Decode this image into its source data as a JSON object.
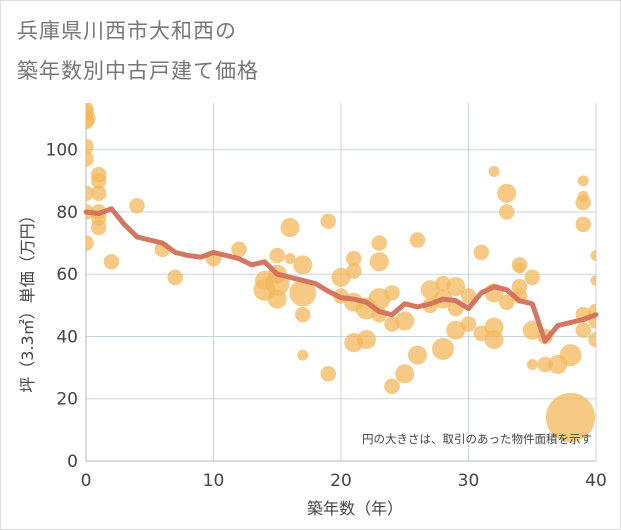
{
  "title_lines": [
    "兵庫県川西市大和西の",
    "築年数別中古戸建て価格"
  ],
  "colors": {
    "bubble": "#f3b85c",
    "line": "#d2705a",
    "grid": "#c9d6e3",
    "axis_text": "#444444",
    "title": "#777777"
  },
  "chart_data": {
    "type": "scatter",
    "title": "兵庫県川西市大和西の築年数別中古戸建て価格",
    "xlabel": "築年数（年）",
    "ylabel": "坪（3.3㎡）単価（万円）",
    "xlim": [
      0,
      40
    ],
    "ylim": [
      0,
      115
    ],
    "x_ticks": [
      0,
      10,
      20,
      30,
      40
    ],
    "y_ticks": [
      0,
      20,
      40,
      60,
      80,
      100
    ],
    "grid": true,
    "annotation": "円の大きさは、取引のあった物件面積を示す",
    "series": [
      {
        "kind": "bubble",
        "points": [
          {
            "x": 0,
            "y": 113,
            "s": 2
          },
          {
            "x": 0,
            "y": 112,
            "s": 2
          },
          {
            "x": 0,
            "y": 110,
            "s": 3
          },
          {
            "x": 0,
            "y": 109,
            "s": 2
          },
          {
            "x": 0,
            "y": 101,
            "s": 2
          },
          {
            "x": 0,
            "y": 97,
            "s": 2
          },
          {
            "x": 0,
            "y": 86,
            "s": 2
          },
          {
            "x": 0,
            "y": 80,
            "s": 2
          },
          {
            "x": 0,
            "y": 70,
            "s": 2
          },
          {
            "x": 1,
            "y": 92,
            "s": 2
          },
          {
            "x": 1,
            "y": 90,
            "s": 2
          },
          {
            "x": 1,
            "y": 86,
            "s": 2
          },
          {
            "x": 1,
            "y": 80,
            "s": 2
          },
          {
            "x": 1,
            "y": 78,
            "s": 2
          },
          {
            "x": 1,
            "y": 75,
            "s": 2
          },
          {
            "x": 2,
            "y": 64,
            "s": 2
          },
          {
            "x": 4,
            "y": 82,
            "s": 2
          },
          {
            "x": 6,
            "y": 68,
            "s": 2
          },
          {
            "x": 7,
            "y": 59,
            "s": 2
          },
          {
            "x": 10,
            "y": 65,
            "s": 2
          },
          {
            "x": 12,
            "y": 68,
            "s": 2
          },
          {
            "x": 14,
            "y": 58,
            "s": 3
          },
          {
            "x": 14,
            "y": 55,
            "s": 4
          },
          {
            "x": 15,
            "y": 66,
            "s": 2
          },
          {
            "x": 15,
            "y": 60,
            "s": 3
          },
          {
            "x": 15,
            "y": 57,
            "s": 5
          },
          {
            "x": 15,
            "y": 52,
            "s": 3
          },
          {
            "x": 16,
            "y": 75,
            "s": 3
          },
          {
            "x": 16,
            "y": 65,
            "s": 1
          },
          {
            "x": 17,
            "y": 63,
            "s": 3
          },
          {
            "x": 17,
            "y": 54,
            "s": 6
          },
          {
            "x": 17,
            "y": 47,
            "s": 2
          },
          {
            "x": 17,
            "y": 34,
            "s": 1
          },
          {
            "x": 19,
            "y": 77,
            "s": 2
          },
          {
            "x": 19,
            "y": 28,
            "s": 2
          },
          {
            "x": 20,
            "y": 59,
            "s": 3
          },
          {
            "x": 20,
            "y": 53,
            "s": 2
          },
          {
            "x": 21,
            "y": 65,
            "s": 2
          },
          {
            "x": 21,
            "y": 61,
            "s": 2
          },
          {
            "x": 21,
            "y": 51,
            "s": 3
          },
          {
            "x": 21,
            "y": 38,
            "s": 3
          },
          {
            "x": 22,
            "y": 49,
            "s": 4
          },
          {
            "x": 22,
            "y": 39,
            "s": 3
          },
          {
            "x": 23,
            "y": 70,
            "s": 2
          },
          {
            "x": 23,
            "y": 64,
            "s": 3
          },
          {
            "x": 23,
            "y": 52,
            "s": 4
          },
          {
            "x": 23,
            "y": 47,
            "s": 2
          },
          {
            "x": 24,
            "y": 54,
            "s": 2
          },
          {
            "x": 24,
            "y": 44,
            "s": 2
          },
          {
            "x": 24,
            "y": 24,
            "s": 2
          },
          {
            "x": 25,
            "y": 45,
            "s": 3
          },
          {
            "x": 25,
            "y": 28,
            "s": 3
          },
          {
            "x": 26,
            "y": 71,
            "s": 2
          },
          {
            "x": 26,
            "y": 34,
            "s": 3
          },
          {
            "x": 27,
            "y": 55,
            "s": 3
          },
          {
            "x": 27,
            "y": 50,
            "s": 2
          },
          {
            "x": 28,
            "y": 57,
            "s": 2
          },
          {
            "x": 28,
            "y": 52,
            "s": 3
          },
          {
            "x": 28,
            "y": 36,
            "s": 4
          },
          {
            "x": 29,
            "y": 56,
            "s": 3
          },
          {
            "x": 29,
            "y": 49,
            "s": 2
          },
          {
            "x": 29,
            "y": 42,
            "s": 3
          },
          {
            "x": 30,
            "y": 53,
            "s": 2
          },
          {
            "x": 30,
            "y": 44,
            "s": 2
          },
          {
            "x": 31,
            "y": 67,
            "s": 2
          },
          {
            "x": 31,
            "y": 41,
            "s": 2
          },
          {
            "x": 32,
            "y": 93,
            "s": 1
          },
          {
            "x": 32,
            "y": 54,
            "s": 3
          },
          {
            "x": 32,
            "y": 43,
            "s": 3
          },
          {
            "x": 32,
            "y": 39,
            "s": 3
          },
          {
            "x": 33,
            "y": 86,
            "s": 3
          },
          {
            "x": 33,
            "y": 80,
            "s": 2
          },
          {
            "x": 33,
            "y": 51,
            "s": 2
          },
          {
            "x": 34,
            "y": 63,
            "s": 2
          },
          {
            "x": 34,
            "y": 62,
            "s": 1
          },
          {
            "x": 34,
            "y": 56,
            "s": 2
          },
          {
            "x": 34,
            "y": 53,
            "s": 2
          },
          {
            "x": 35,
            "y": 59,
            "s": 2
          },
          {
            "x": 35,
            "y": 42,
            "s": 3
          },
          {
            "x": 35,
            "y": 31,
            "s": 1
          },
          {
            "x": 36,
            "y": 40,
            "s": 2
          },
          {
            "x": 36,
            "y": 31,
            "s": 2
          },
          {
            "x": 37,
            "y": 31,
            "s": 3
          },
          {
            "x": 38,
            "y": 34,
            "s": 4
          },
          {
            "x": 38,
            "y": 14,
            "s": 20
          },
          {
            "x": 39,
            "y": 90,
            "s": 1
          },
          {
            "x": 39,
            "y": 85,
            "s": 1
          },
          {
            "x": 39,
            "y": 83,
            "s": 2
          },
          {
            "x": 39,
            "y": 76,
            "s": 2
          },
          {
            "x": 39,
            "y": 47,
            "s": 2
          },
          {
            "x": 39,
            "y": 42,
            "s": 2
          },
          {
            "x": 40,
            "y": 66,
            "s": 1
          },
          {
            "x": 40,
            "y": 58,
            "s": 1
          },
          {
            "x": 40,
            "y": 48,
            "s": 2
          },
          {
            "x": 40,
            "y": 45,
            "s": 2
          },
          {
            "x": 40,
            "y": 39,
            "s": 2
          }
        ]
      },
      {
        "kind": "line",
        "x": [
          0,
          1,
          2,
          3,
          4,
          5,
          6,
          7,
          8,
          9,
          10,
          11,
          12,
          13,
          14,
          15,
          16,
          17,
          18,
          19,
          20,
          21,
          22,
          23,
          24,
          25,
          26,
          27,
          28,
          29,
          30,
          31,
          32,
          33,
          34,
          35,
          36,
          37,
          38,
          39,
          40
        ],
        "y": [
          80,
          79.5,
          81,
          76,
          72,
          71,
          70,
          67,
          66,
          65.5,
          67,
          66,
          65,
          63,
          64,
          60,
          59,
          58,
          57,
          54.5,
          52.5,
          52,
          51,
          48,
          47,
          50.5,
          49.5,
          50.5,
          52,
          51.5,
          49,
          54,
          56,
          55,
          51.5,
          50.5,
          38.5,
          43.5,
          44.5,
          45.5,
          47
        ]
      }
    ]
  }
}
